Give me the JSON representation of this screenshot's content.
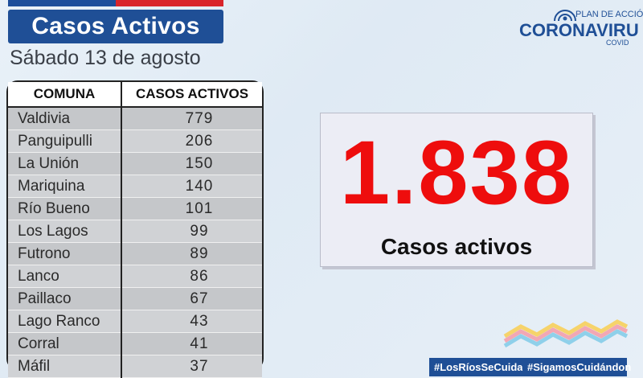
{
  "header": {
    "title": "Casos Activos",
    "date": "Sábado 13 de agosto"
  },
  "table": {
    "col1": "COMUNA",
    "col2": "CASOS ACTIVOS",
    "rows": [
      {
        "comuna": "Valdivia",
        "casos": "779"
      },
      {
        "comuna": "Panguipulli",
        "casos": "206"
      },
      {
        "comuna": "La Unión",
        "casos": "150"
      },
      {
        "comuna": "Mariquina",
        "casos": "140"
      },
      {
        "comuna": "Río Bueno",
        "casos": "101"
      },
      {
        "comuna": "Los Lagos",
        "casos": "99"
      },
      {
        "comuna": "Futrono",
        "casos": "89"
      },
      {
        "comuna": "Lanco",
        "casos": "86"
      },
      {
        "comuna": "Paillaco",
        "casos": "67"
      },
      {
        "comuna": "Lago Ranco",
        "casos": "43"
      },
      {
        "comuna": "Corral",
        "casos": "41"
      },
      {
        "comuna": "Máfil",
        "casos": "37"
      }
    ]
  },
  "summary": {
    "total": "1.838",
    "label": "Casos activos"
  },
  "logo": {
    "plan": "PLAN DE ACCIÓ",
    "name": "CORONAVIRU",
    "sub": "COVID"
  },
  "hashtags": [
    "#LosRíosSeCuida",
    "#SigamosCuidándon"
  ],
  "colors": {
    "brand_blue": "#1f4f96",
    "accent_red": "#ee0d0d"
  }
}
